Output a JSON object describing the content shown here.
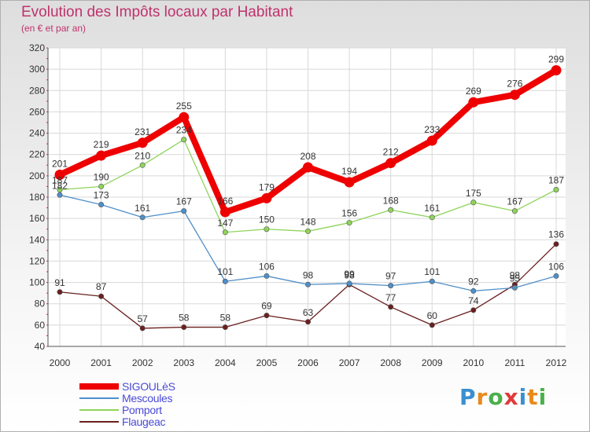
{
  "title": "Evolution des Impôts locaux par Habitant",
  "subtitle": "(en € et par an)",
  "logo": {
    "letters": [
      "P",
      "r",
      "o",
      "x",
      "i",
      "t",
      "i"
    ],
    "colors": [
      "#3a8fd0",
      "#e88a1c",
      "#4ab04a",
      "#e03a3a",
      "#3a8fd0",
      "#e88a1c",
      "#4ab04a"
    ]
  },
  "chart_data": {
    "type": "line",
    "title": "Evolution des Impôts locaux par Habitant",
    "subtitle": "(en € et par an)",
    "x": [
      "2000",
      "2001",
      "2002",
      "2003",
      "2004",
      "2005",
      "2006",
      "2007",
      "2008",
      "2009",
      "2010",
      "2011",
      "2012"
    ],
    "ylim": [
      40,
      320
    ],
    "yticks": [
      40,
      60,
      80,
      100,
      120,
      140,
      160,
      180,
      200,
      220,
      240,
      260,
      280,
      300,
      320
    ],
    "grid": true,
    "legend_position": "bottom-left",
    "series": [
      {
        "name": "SIGOULèS",
        "color": "#ee0000",
        "width": 8,
        "values": [
          201,
          219,
          231,
          255,
          166,
          179,
          208,
          194,
          212,
          233,
          269,
          276,
          299
        ]
      },
      {
        "name": "Mescoules",
        "color": "#4f8fc8",
        "width": 1.3,
        "values": [
          182,
          173,
          161,
          167,
          101,
          106,
          98,
          99,
          97,
          101,
          92,
          95,
          106
        ]
      },
      {
        "name": "Pomport",
        "color": "#8fd45a",
        "width": 1.3,
        "values": [
          187,
          190,
          210,
          234,
          147,
          150,
          148,
          156,
          168,
          161,
          175,
          167,
          187
        ]
      },
      {
        "name": "Flaugeac",
        "color": "#6a1f1f",
        "width": 1.3,
        "values": [
          91,
          87,
          57,
          58,
          58,
          69,
          63,
          98,
          77,
          60,
          74,
          98,
          136
        ]
      }
    ]
  }
}
